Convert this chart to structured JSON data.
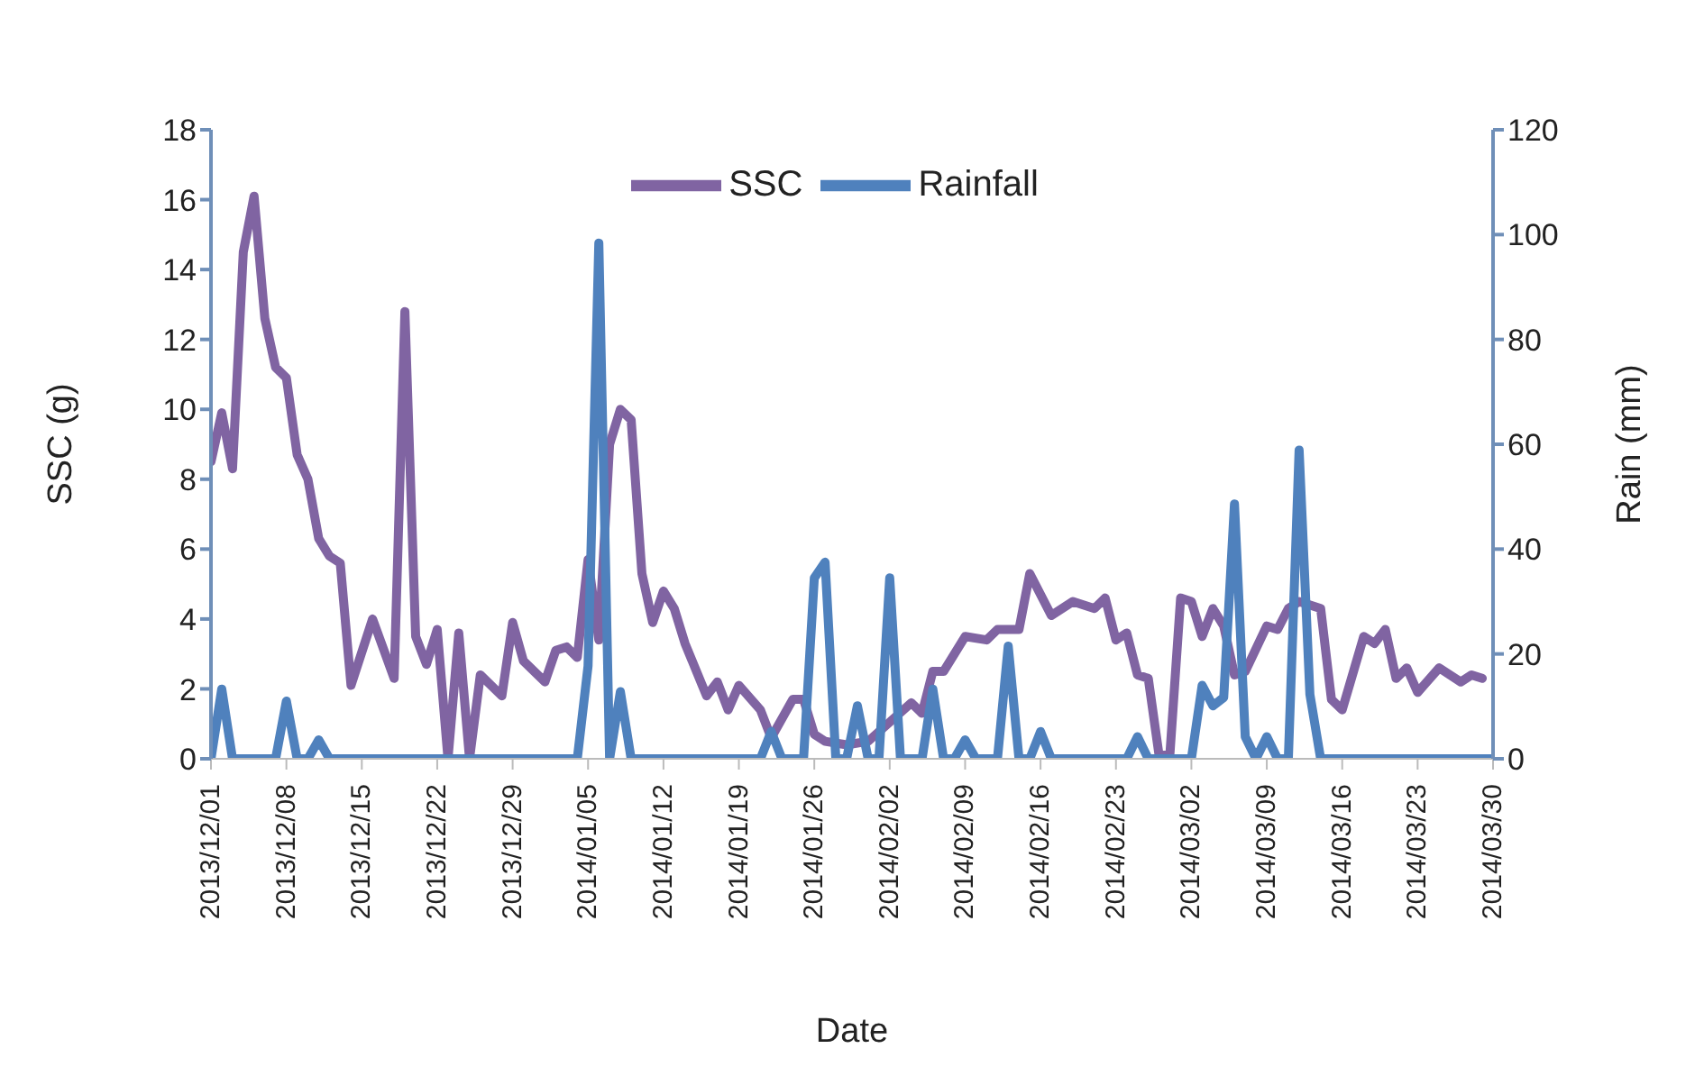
{
  "chart_data": {
    "type": "line",
    "xlabel": "Date",
    "ylabel": "SSC (g)",
    "y2label": "Rain (mm)",
    "xlim": [
      "2013-12-01",
      "2014-03-30"
    ],
    "xticks": [
      {
        "value": "2013-12-01",
        "label": "2013/12/01"
      },
      {
        "value": "2013-12-08",
        "label": "2013/12/08"
      },
      {
        "value": "2013-12-15",
        "label": "2013/12/15"
      },
      {
        "value": "2013-12-22",
        "label": "2013/12/22"
      },
      {
        "value": "2013-12-29",
        "label": "2013/12/29"
      },
      {
        "value": "2014-01-05",
        "label": "2014/01/05"
      },
      {
        "value": "2014-01-12",
        "label": "2014/01/12"
      },
      {
        "value": "2014-01-19",
        "label": "2014/01/19"
      },
      {
        "value": "2014-01-26",
        "label": "2014/01/26"
      },
      {
        "value": "2014-02-02",
        "label": "2014/02/02"
      },
      {
        "value": "2014-02-09",
        "label": "2014/02/09"
      },
      {
        "value": "2014-02-16",
        "label": "2014/02/16"
      },
      {
        "value": "2014-02-23",
        "label": "2014/02/23"
      },
      {
        "value": "2014-03-02",
        "label": "2014/03/02"
      },
      {
        "value": "2014-03-09",
        "label": "2014/03/09"
      },
      {
        "value": "2014-03-16",
        "label": "2014/03/16"
      },
      {
        "value": "2014-03-23",
        "label": "2014/03/23"
      },
      {
        "value": "2014-03-30",
        "label": "2014/03/30"
      }
    ],
    "ylim": [
      0,
      18
    ],
    "yticks": [
      0,
      2,
      4,
      6,
      8,
      10,
      12,
      14,
      16,
      18
    ],
    "y2lim": [
      0,
      120
    ],
    "y2ticks": [
      0,
      20,
      40,
      60,
      80,
      100,
      120
    ],
    "legend": "top",
    "grid": false,
    "marker": "none",
    "series": [
      {
        "name": "SSC",
        "color": "#8064a2",
        "x": [
          "2013-12-01",
          "2013-12-02",
          "2013-12-03",
          "2013-12-04",
          "2013-12-05",
          "2013-12-06",
          "2013-12-07",
          "2013-12-08",
          "2013-12-09",
          "2013-12-10",
          "2013-12-11",
          "2013-12-12",
          "2013-12-13",
          "2013-12-14",
          "2013-12-16",
          "2013-12-18",
          "2013-12-19",
          "2013-12-20",
          "2013-12-21",
          "2013-12-22",
          "2013-12-23",
          "2013-12-24",
          "2013-12-25",
          "2013-12-26",
          "2013-12-28",
          "2013-12-29",
          "2013-12-30",
          "2014-01-01",
          "2014-01-02",
          "2014-01-03",
          "2014-01-04",
          "2014-01-05",
          "2014-01-06",
          "2014-01-07",
          "2014-01-08",
          "2014-01-09",
          "2014-01-10",
          "2014-01-11",
          "2014-01-12",
          "2014-01-13",
          "2014-01-14",
          "2014-01-16",
          "2014-01-17",
          "2014-01-18",
          "2014-01-19",
          "2014-01-21",
          "2014-01-22",
          "2014-01-24",
          "2014-01-25",
          "2014-01-26",
          "2014-01-27",
          "2014-01-29",
          "2014-01-31",
          "2014-02-04",
          "2014-02-05",
          "2014-02-06",
          "2014-02-07",
          "2014-02-09",
          "2014-02-11",
          "2014-02-12",
          "2014-02-14",
          "2014-02-15",
          "2014-02-17",
          "2014-02-19",
          "2014-02-21",
          "2014-02-22",
          "2014-02-23",
          "2014-02-24",
          "2014-02-25",
          "2014-02-26",
          "2014-02-27",
          "2014-02-28",
          "2014-03-01",
          "2014-03-02",
          "2014-03-03",
          "2014-03-04",
          "2014-03-05",
          "2014-03-06",
          "2014-03-07",
          "2014-03-09",
          "2014-03-10",
          "2014-03-11",
          "2014-03-12",
          "2014-03-14",
          "2014-03-15",
          "2014-03-16",
          "2014-03-18",
          "2014-03-19",
          "2014-03-20",
          "2014-03-21",
          "2014-03-22",
          "2014-03-23",
          "2014-03-25",
          "2014-03-27",
          "2014-03-28",
          "2014-03-29"
        ],
        "values": [
          8.5,
          9.9,
          8.3,
          14.5,
          16.1,
          12.6,
          11.2,
          10.9,
          8.7,
          8.0,
          6.3,
          5.8,
          5.6,
          2.1,
          4.0,
          2.3,
          12.8,
          3.5,
          2.7,
          3.7,
          0,
          3.6,
          0,
          2.4,
          1.8,
          3.9,
          2.8,
          2.2,
          3.1,
          3.2,
          2.9,
          5.7,
          3.4,
          9.0,
          10.0,
          9.7,
          5.3,
          3.9,
          4.8,
          4.3,
          3.3,
          1.8,
          2.2,
          1.4,
          2.1,
          1.4,
          0.6,
          1.7,
          1.7,
          0.7,
          0.5,
          0.4,
          0.5,
          1.6,
          1.3,
          2.5,
          2.5,
          3.5,
          3.4,
          3.7,
          3.7,
          5.3,
          4.1,
          4.5,
          4.3,
          4.6,
          3.4,
          3.6,
          2.4,
          2.3,
          0.1,
          0.1,
          4.6,
          4.5,
          3.5,
          4.3,
          3.8,
          2.4,
          2.5,
          3.8,
          3.7,
          4.3,
          4.5,
          4.3,
          1.7,
          1.4,
          3.5,
          3.3,
          3.7,
          2.3,
          2.6,
          1.9,
          2.6,
          2.2,
          2.4,
          2.3
        ]
      },
      {
        "name": "Rainfall",
        "color": "#4f81bd",
        "axis": "y2",
        "x": [
          "2013-12-01",
          "2013-12-02",
          "2013-12-03",
          "2013-12-07",
          "2013-12-08",
          "2013-12-09",
          "2013-12-10",
          "2013-12-11",
          "2013-12-12",
          "2014-01-04",
          "2014-01-05",
          "2014-01-06",
          "2014-01-07",
          "2014-01-08",
          "2014-01-09",
          "2014-01-21",
          "2014-01-22",
          "2014-01-23",
          "2014-01-25",
          "2014-01-26",
          "2014-01-27",
          "2014-01-28",
          "2014-01-29",
          "2014-01-30",
          "2014-01-31",
          "2014-02-01",
          "2014-02-02",
          "2014-02-03",
          "2014-02-05",
          "2014-02-06",
          "2014-02-07",
          "2014-02-08",
          "2014-02-09",
          "2014-02-10",
          "2014-02-12",
          "2014-02-13",
          "2014-02-14",
          "2014-02-15",
          "2014-02-16",
          "2014-02-17",
          "2014-02-24",
          "2014-02-25",
          "2014-02-26",
          "2014-03-02",
          "2014-03-03",
          "2014-03-04",
          "2014-03-05",
          "2014-03-06",
          "2014-03-07",
          "2014-03-08",
          "2014-03-09",
          "2014-03-10",
          "2014-03-11",
          "2014-03-12",
          "2014-03-13",
          "2014-03-14",
          "2014-03-30"
        ],
        "values": [
          0,
          13.3,
          0,
          0,
          11,
          0,
          0,
          3.6,
          0,
          0,
          17.7,
          98.4,
          0,
          12.8,
          0,
          0,
          5.2,
          0,
          0,
          34.5,
          37.5,
          0,
          0,
          10.1,
          0,
          0,
          34.5,
          0,
          0,
          13.3,
          0,
          0,
          3.6,
          0,
          0,
          21.5,
          0,
          0,
          5.2,
          0,
          0,
          4.2,
          0,
          0,
          14.0,
          10.1,
          11.7,
          48.6,
          4.2,
          0,
          4.2,
          0,
          0,
          58.9,
          12.3,
          0,
          0
        ]
      }
    ]
  }
}
